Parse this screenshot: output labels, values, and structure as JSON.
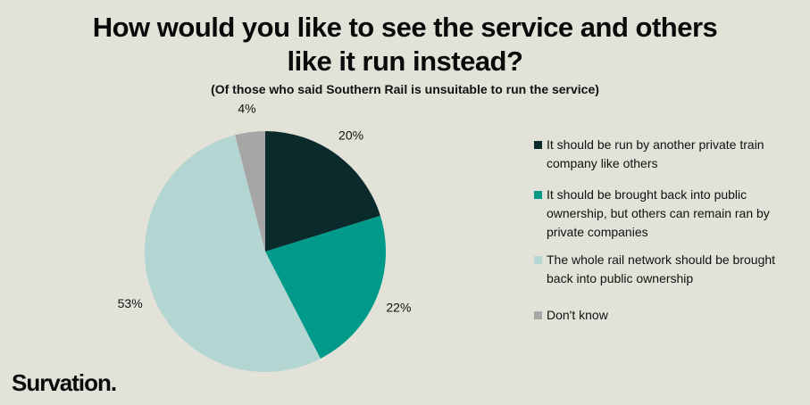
{
  "title_lines": [
    "How would you like to see the service and others",
    "like it run instead?"
  ],
  "subtitle": "(Of those who said Southern Rail is unsuitable to run the service)",
  "logo_text": "Survation.",
  "chart_data": {
    "type": "pie",
    "title": "How would you like to see the service and others like it run instead?",
    "subtitle": "(Of those who said Southern Rail is unsuitable to run the service)",
    "categories": [
      "It should be run by another private train company like others",
      "It should be brought back into public ownership, but others can remain ran by private companies",
      "The whole rail network should be brought back into public ownership",
      "Don't know"
    ],
    "legend_lines": [
      [
        "It should be run by another private train",
        "company like others"
      ],
      [
        "It should be brought back into public",
        "ownership, but others can remain ran by",
        "private companies"
      ],
      [
        "The whole rail network should be brought",
        "back into public ownership"
      ],
      [
        "Don't know"
      ]
    ],
    "values": [
      20,
      22,
      53,
      4
    ],
    "labels": [
      "20%",
      "22%",
      "53%",
      "4%"
    ],
    "colors": [
      "#0b2a2b",
      "#009a8a",
      "#b4d6d2",
      "#a6a6a6"
    ],
    "legend_position": "right"
  }
}
